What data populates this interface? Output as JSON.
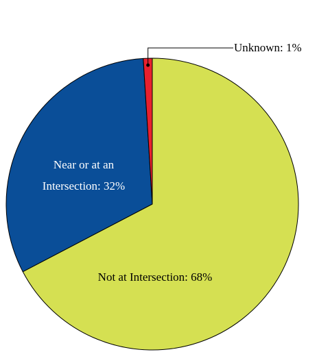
{
  "chart_data": {
    "type": "pie",
    "categories": [
      "Not at Intersection",
      "Near or at an Intersection",
      "Unknown"
    ],
    "values": [
      68,
      32,
      1
    ],
    "labels": [
      "Not at Intersection: 68%",
      "Near or at an Intersection: 32%",
      "Unknown: 1%"
    ],
    "colors": [
      "#d5e052",
      "#0a4e98",
      "#e8202e"
    ]
  }
}
